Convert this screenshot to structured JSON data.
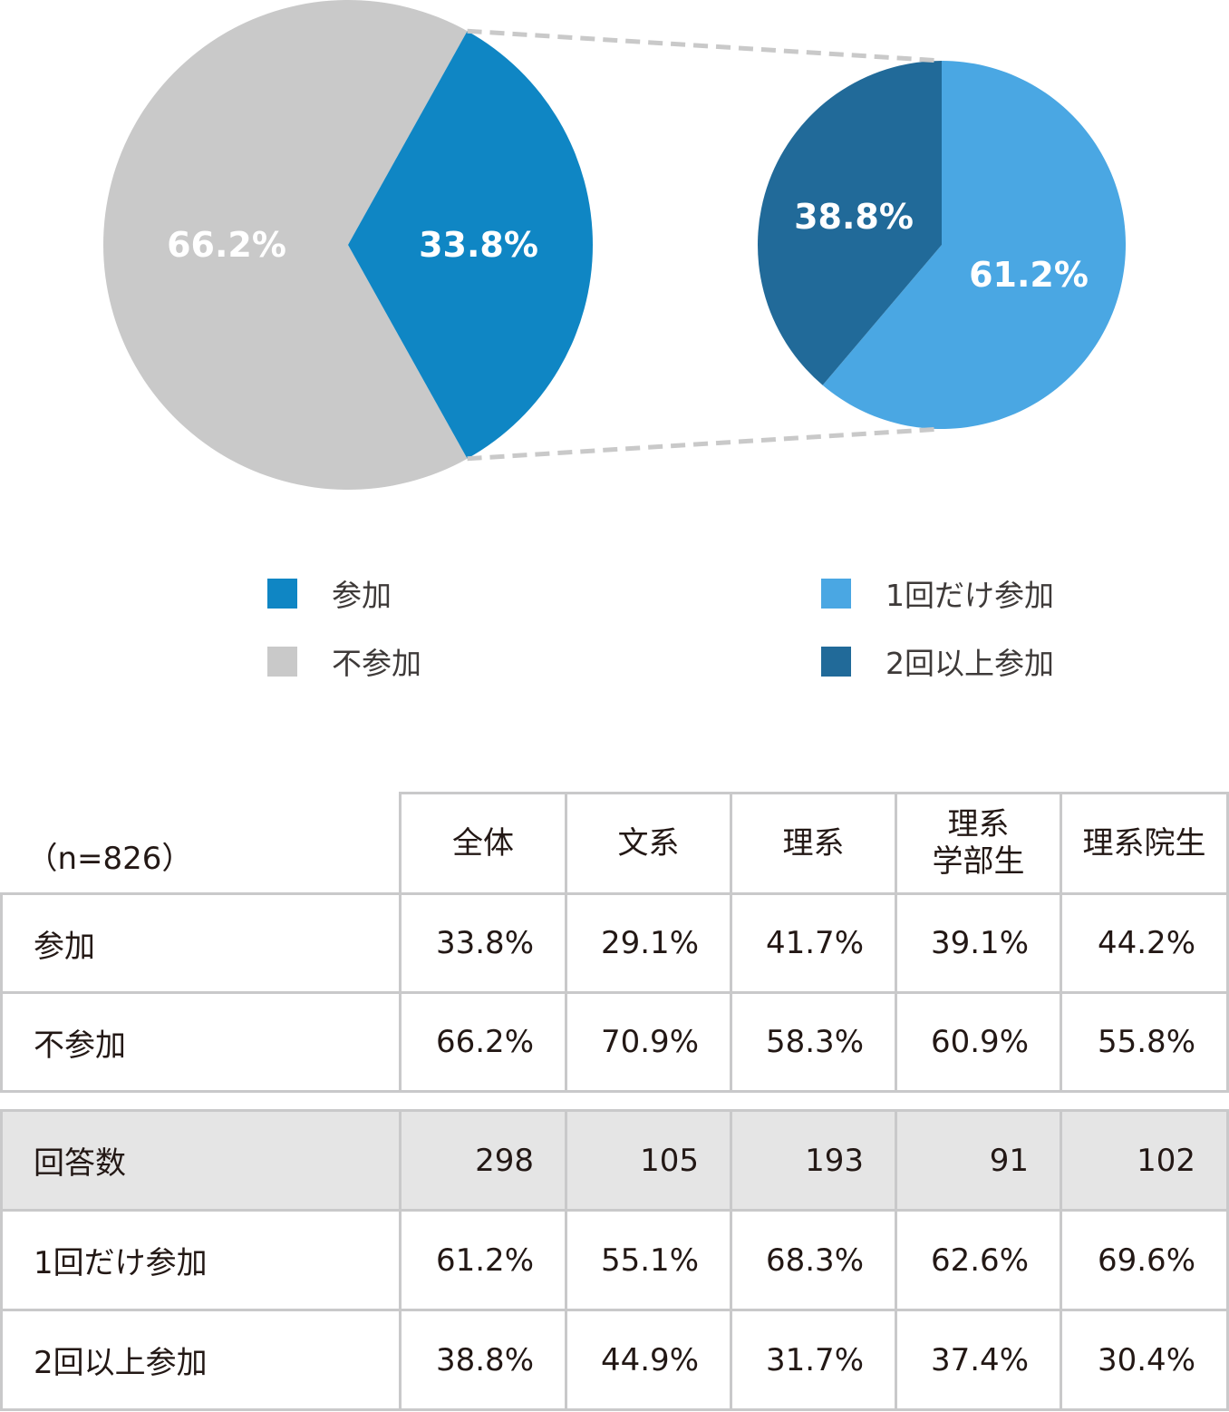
{
  "chart_data": [
    {
      "type": "pie",
      "slices": [
        {
          "label": "参加",
          "value": 33.8,
          "display": "33.8%",
          "color": "#0f86c4"
        },
        {
          "label": "不参加",
          "value": 66.2,
          "display": "66.2%",
          "color": "#c9c9c9"
        }
      ],
      "legend_placement": "bottom"
    },
    {
      "type": "pie",
      "slices": [
        {
          "label": "1回だけ参加",
          "value": 61.2,
          "display": "61.2%",
          "color": "#4aa7e3"
        },
        {
          "label": "2回以上参加",
          "value": 38.8,
          "display": "38.8%",
          "color": "#216a99"
        }
      ],
      "legend_placement": "bottom"
    }
  ],
  "legend_left": [
    {
      "label": "参加",
      "color": "#0f86c4"
    },
    {
      "label": "不参加",
      "color": "#c9c9c9"
    }
  ],
  "legend_right": [
    {
      "label": "1回だけ参加",
      "color": "#4aa7e3"
    },
    {
      "label": "2回以上参加",
      "color": "#216a99"
    }
  ],
  "table": {
    "n_label": "（n=826）",
    "headers": [
      "全体",
      "文系",
      "理系",
      "理系\n学部生",
      "理系院生"
    ],
    "rows": [
      {
        "label": "参加",
        "values": [
          "33.8%",
          "29.1%",
          "41.7%",
          "39.1%",
          "44.2%"
        ]
      },
      {
        "label": "不参加",
        "values": [
          "66.2%",
          "70.9%",
          "58.3%",
          "60.9%",
          "55.8%"
        ]
      }
    ]
  },
  "table2": {
    "rows": [
      {
        "label": "回答数",
        "values": [
          "298",
          "105",
          "193",
          "91",
          "102"
        ]
      },
      {
        "label": "1回だけ参加",
        "values": [
          "61.2%",
          "55.1%",
          "68.3%",
          "62.6%",
          "69.6%"
        ]
      },
      {
        "label": "2回以上参加",
        "values": [
          "38.8%",
          "44.9%",
          "31.7%",
          "37.4%",
          "30.4%"
        ]
      }
    ]
  }
}
